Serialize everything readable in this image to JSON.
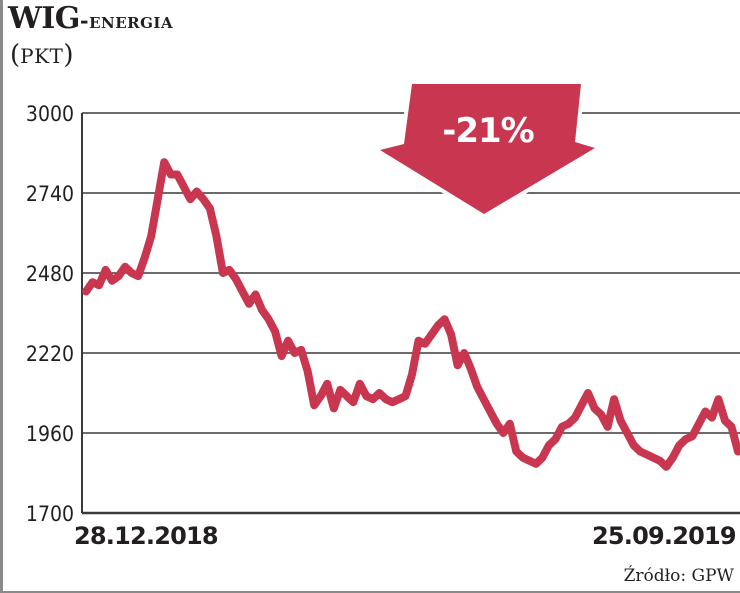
{
  "header": {
    "title_main": "WIG",
    "title_sub": "-ENERGIA",
    "unit": "PKT"
  },
  "annotation": {
    "label": "-21%",
    "arrow_color": "#c8364f",
    "direction": "down"
  },
  "axis": {
    "x_start_label": "28.12.2018",
    "x_end_label": "25.09.2019",
    "y_ticks": [
      "3000",
      "2740",
      "2480",
      "2220",
      "1960",
      "1700"
    ]
  },
  "footer": {
    "source": "Źródło: GPW"
  },
  "colors": {
    "line": "#c8364f",
    "grid": "#3a3a3a",
    "text": "#231f20"
  },
  "chart_data": {
    "type": "line",
    "title": "WIG-ENERGIA",
    "subtitle": "(PKT)",
    "xlabel": "",
    "ylabel": "PKT",
    "ylim": [
      1700,
      3000
    ],
    "yticks": [
      1700,
      1960,
      2220,
      2480,
      2740,
      3000
    ],
    "grid": true,
    "legend": "none",
    "annotation": "-21%",
    "x_range": [
      "28.12.2018",
      "25.09.2019"
    ],
    "series": [
      {
        "name": "WIG-ENERGIA",
        "x_frac": [
          0.0,
          0.01,
          0.02,
          0.03,
          0.04,
          0.05,
          0.06,
          0.07,
          0.08,
          0.09,
          0.1,
          0.11,
          0.12,
          0.13,
          0.14,
          0.15,
          0.16,
          0.17,
          0.18,
          0.19,
          0.2,
          0.21,
          0.22,
          0.23,
          0.24,
          0.25,
          0.26,
          0.27,
          0.28,
          0.29,
          0.3,
          0.31,
          0.32,
          0.33,
          0.34,
          0.35,
          0.36,
          0.37,
          0.38,
          0.39,
          0.4,
          0.41,
          0.42,
          0.43,
          0.44,
          0.45,
          0.46,
          0.47,
          0.48,
          0.49,
          0.5,
          0.51,
          0.52,
          0.53,
          0.54,
          0.55,
          0.56,
          0.57,
          0.58,
          0.59,
          0.6,
          0.61,
          0.62,
          0.63,
          0.64,
          0.65,
          0.66,
          0.67,
          0.68,
          0.69,
          0.7,
          0.71,
          0.72,
          0.73,
          0.74,
          0.75,
          0.76,
          0.77,
          0.78,
          0.79,
          0.8,
          0.81,
          0.82,
          0.83,
          0.84,
          0.85,
          0.86,
          0.87,
          0.88,
          0.89,
          0.9,
          0.91,
          0.92,
          0.93,
          0.94,
          0.95,
          0.96,
          0.97,
          0.98,
          0.99,
          1.0
        ],
        "values": [
          2420,
          2450,
          2440,
          2490,
          2455,
          2470,
          2500,
          2480,
          2470,
          2530,
          2600,
          2720,
          2840,
          2800,
          2800,
          2760,
          2720,
          2745,
          2720,
          2690,
          2600,
          2480,
          2490,
          2460,
          2420,
          2380,
          2410,
          2360,
          2330,
          2290,
          2210,
          2260,
          2220,
          2230,
          2160,
          2050,
          2080,
          2120,
          2040,
          2100,
          2080,
          2060,
          2120,
          2080,
          2070,
          2090,
          2070,
          2060,
          2070,
          2080,
          2150,
          2260,
          2250,
          2280,
          2310,
          2330,
          2280,
          2180,
          2220,
          2170,
          2110,
          2070,
          2030,
          1990,
          1960,
          1990,
          1900,
          1880,
          1870,
          1860,
          1880,
          1920,
          1940,
          1980,
          1990,
          2010,
          2050,
          2090,
          2040,
          2020,
          1980,
          2070,
          2000,
          1960,
          1920,
          1900,
          1890,
          1880,
          1870,
          1850,
          1880,
          1920,
          1940,
          1950,
          1990,
          2030,
          2010,
          2070,
          2000,
          1980,
          1900
        ]
      }
    ]
  }
}
